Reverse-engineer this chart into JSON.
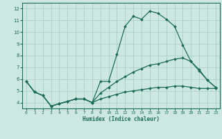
{
  "xlabel": "Humidex (Indice chaleur)",
  "xlim": [
    -0.5,
    23.5
  ],
  "ylim": [
    3.5,
    12.5
  ],
  "yticks": [
    4,
    5,
    6,
    7,
    8,
    9,
    10,
    11,
    12
  ],
  "xticks": [
    0,
    1,
    2,
    3,
    4,
    5,
    6,
    7,
    8,
    9,
    10,
    11,
    12,
    13,
    14,
    15,
    16,
    17,
    18,
    19,
    20,
    21,
    22,
    23
  ],
  "bg_color": "#cce8e0",
  "grid_color": "#aacfc8",
  "line_color": "#1a6b5a",
  "line1_x": [
    0,
    1,
    2,
    3,
    4,
    5,
    6,
    7,
    8,
    9,
    10,
    11,
    12,
    13,
    14,
    15,
    16,
    17,
    18,
    19,
    20,
    21,
    22,
    23
  ],
  "line1_y": [
    5.8,
    4.9,
    4.6,
    3.7,
    3.9,
    4.1,
    4.3,
    4.3,
    4.0,
    5.8,
    5.8,
    8.1,
    10.5,
    11.35,
    11.1,
    11.8,
    11.6,
    11.1,
    10.5,
    8.9,
    7.5,
    6.8,
    5.9,
    5.3
  ],
  "line2_x": [
    0,
    1,
    2,
    3,
    4,
    5,
    6,
    7,
    8,
    9,
    10,
    11,
    12,
    13,
    14,
    15,
    16,
    17,
    18,
    19,
    20,
    21,
    22,
    23
  ],
  "line2_y": [
    5.8,
    4.9,
    4.6,
    3.7,
    3.9,
    4.1,
    4.3,
    4.3,
    4.0,
    4.8,
    5.3,
    5.8,
    6.2,
    6.6,
    6.9,
    7.2,
    7.3,
    7.5,
    7.7,
    7.8,
    7.5,
    6.7,
    5.9,
    5.3
  ],
  "line3_x": [
    0,
    1,
    2,
    3,
    4,
    5,
    6,
    7,
    8,
    9,
    10,
    11,
    12,
    13,
    14,
    15,
    16,
    17,
    18,
    19,
    20,
    21,
    22,
    23
  ],
  "line3_y": [
    5.8,
    4.9,
    4.6,
    3.7,
    3.9,
    4.1,
    4.3,
    4.3,
    4.0,
    4.3,
    4.5,
    4.7,
    4.9,
    5.0,
    5.1,
    5.2,
    5.3,
    5.3,
    5.4,
    5.4,
    5.3,
    5.2,
    5.2,
    5.2
  ]
}
